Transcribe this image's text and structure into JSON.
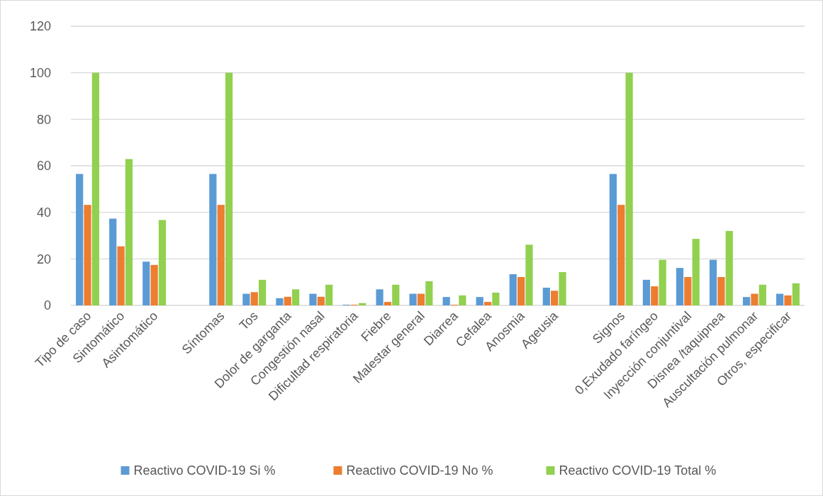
{
  "chart_data": {
    "type": "bar",
    "categories": [
      "Tipo de caso",
      "Sintomático",
      "Asintomático",
      null,
      "Síntomas",
      "Tos",
      "Dolor de garganta",
      "Congestión nasal",
      "Dificultad respiratoria",
      "Fiebre",
      "Malestar general",
      "Diarrea",
      "Cefalea",
      "Anosmia",
      "Ageusia",
      null,
      "Signos",
      "0,Exudado faríngeo",
      "Inyección conjuntival",
      "Disnea /taquipnea",
      "Auscultación pulmonar",
      "Otros, especificar"
    ],
    "series": [
      {
        "name": "Reactivo COVID-19 Si %",
        "color": "#5b9bd5",
        "values": [
          56.5,
          37.3,
          18.8,
          null,
          56.5,
          5.0,
          3.1,
          5.0,
          0.3,
          6.9,
          5.0,
          3.6,
          3.6,
          13.4,
          7.6,
          null,
          56.5,
          11.0,
          16.1,
          19.6,
          3.6,
          5.0
        ]
      },
      {
        "name": "Reactivo COVID-19 No %",
        "color": "#ed7d31",
        "values": [
          43.2,
          25.4,
          17.4,
          null,
          43.2,
          5.7,
          3.7,
          3.7,
          0.3,
          1.5,
          5.0,
          0.3,
          1.5,
          12.2,
          6.3,
          null,
          43.2,
          8.2,
          12.2,
          12.2,
          5.0,
          4.3
        ]
      },
      {
        "name": "Reactivo COVID-19 Total %",
        "color": "#92d050",
        "values": [
          100,
          62.9,
          36.7,
          null,
          100,
          11.0,
          6.9,
          8.9,
          1.0,
          8.9,
          10.4,
          4.3,
          5.5,
          26.1,
          14.3,
          null,
          100,
          19.6,
          28.6,
          32.0,
          8.9,
          9.5
        ]
      }
    ],
    "ylim": [
      0,
      120
    ],
    "yticks": [
      0,
      20,
      40,
      60,
      80,
      100,
      120
    ],
    "grid": "y",
    "legend": "bottom"
  }
}
